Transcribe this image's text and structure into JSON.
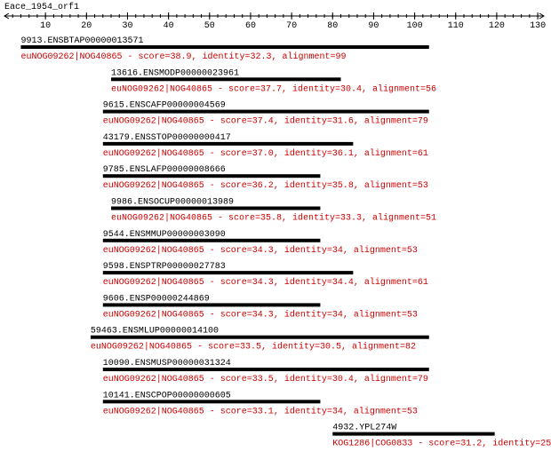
{
  "ruler": {
    "title": "Eace_1954_orf1",
    "lim": [
      0,
      131.5
    ],
    "ticks": [
      10,
      20,
      30,
      40,
      50,
      60,
      70,
      80,
      90,
      100,
      110,
      120,
      130
    ]
  },
  "hits": [
    {
      "name": "9913.ENSBTAP00000013571",
      "annotation": "euNOG09262|NOG40865 - score=38.9, identity=32.3, alignment=99",
      "start": 4,
      "end": 103.5
    },
    {
      "name": "13616.ENSMODP00000023961",
      "annotation": "euNOG09262|NOG40865 - score=37.7, identity=30.4, alignment=56",
      "start": 26,
      "end": 82
    },
    {
      "name": "9615.ENSCAFP00000004569",
      "annotation": "euNOG09262|NOG40865 - score=37.4, identity=31.6, alignment=79",
      "start": 24,
      "end": 103.5
    },
    {
      "name": "43179.ENSSTOP00000000417",
      "annotation": "euNOG09262|NOG40865 - score=37.0, identity=36.1, alignment=61",
      "start": 24,
      "end": 85
    },
    {
      "name": "9785.ENSLAFP00000008666",
      "annotation": "euNOG09262|NOG40865 - score=36.2, identity=35.8, alignment=53",
      "start": 24,
      "end": 77
    },
    {
      "name": "9986.ENSOCUP00000013989",
      "annotation": "euNOG09262|NOG40865 - score=35.8, identity=33.3, alignment=51",
      "start": 26,
      "end": 77
    },
    {
      "name": "9544.ENSMMUP00000003090",
      "annotation": "euNOG09262|NOG40865 - score=34.3, identity=34, alignment=53",
      "start": 24,
      "end": 77
    },
    {
      "name": "9598.ENSPTRP00000027783",
      "annotation": "euNOG09262|NOG40865 - score=34.3, identity=34.4, alignment=61",
      "start": 24,
      "end": 85
    },
    {
      "name": "9606.ENSP00000244869",
      "annotation": "euNOG09262|NOG40865 - score=34.3, identity=34, alignment=53",
      "start": 24,
      "end": 77
    },
    {
      "name": "59463.ENSMLUP00000014100",
      "annotation": "euNOG09262|NOG40865 - score=33.5, identity=30.5, alignment=82",
      "start": 21,
      "end": 103.5
    },
    {
      "name": "10090.ENSMUSP00000031324",
      "annotation": "euNOG09262|NOG40865 - score=33.5, identity=30.4, alignment=79",
      "start": 24,
      "end": 103.5
    },
    {
      "name": "10141.ENSCPOP00000000605",
      "annotation": "euNOG09262|NOG40865 - score=33.1, identity=34, alignment=53",
      "start": 24,
      "end": 77
    },
    {
      "name": "4932.YPL274W",
      "annotation": "KOG1286|COG0833 - score=31.2, identity=25",
      "start": 80,
      "end": 119.5
    }
  ]
}
